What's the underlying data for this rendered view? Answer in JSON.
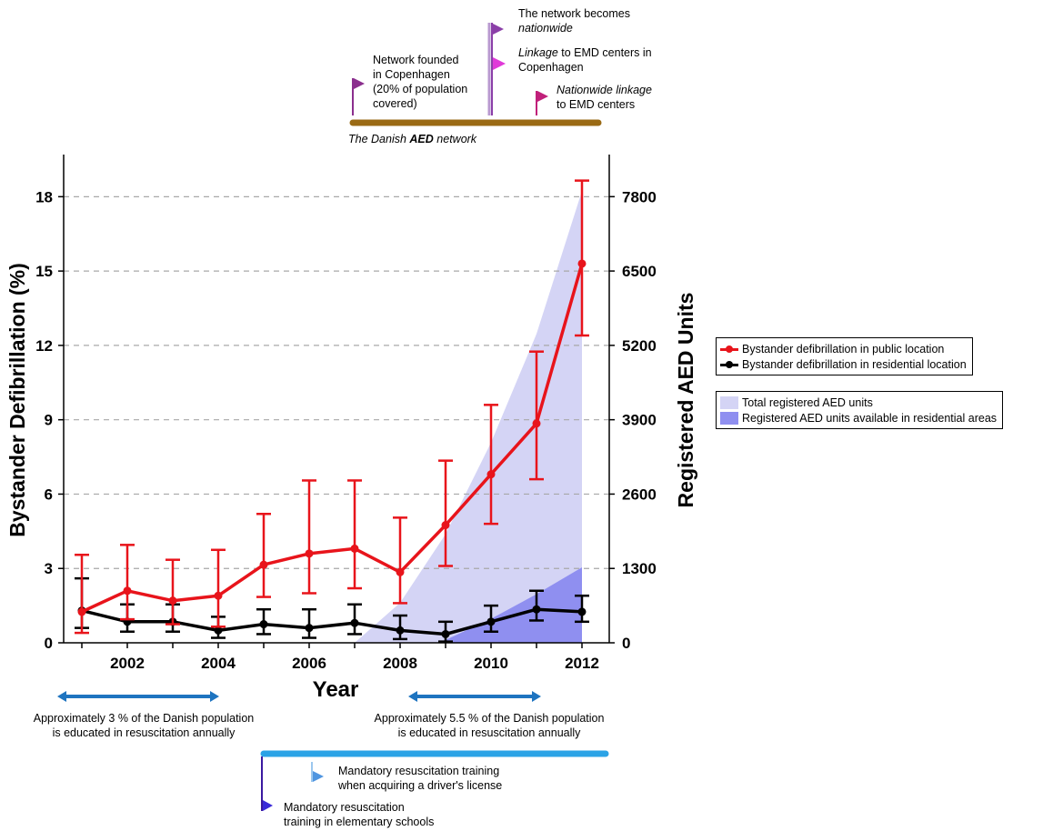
{
  "timeline": {
    "label_prefix": "The Danish ",
    "label_em": "AED",
    "label_suffix": " network",
    "events": [
      {
        "lines": [
          "Network founded",
          "in Copenhagen",
          "(20% of population",
          "covered)"
        ],
        "color": "#8b2f8e"
      },
      {
        "line1_em": "The network becomes",
        "line2_em": "nationwide",
        "color": "#8b3fa8"
      },
      {
        "line1_em": "Linkage",
        "line1_rest": " to EMD centers in",
        "line2": "Copenhagen",
        "color": "#e03ad8"
      },
      {
        "line1_em": "Nationwide linkage",
        "line2": "to EMD centers",
        "color": "#c0207a"
      }
    ]
  },
  "education": {
    "note_left": {
      "line1": "Approximately 3 % of the Danish population",
      "line2": "is educated in resuscitation annually"
    },
    "note_right": {
      "line1": "Approximately 5.5 % of the Danish population",
      "line2": "is educated in resuscitation annually"
    },
    "mandatory_driver": {
      "line1": "Mandatory resuscitation training",
      "line2": "when acquiring a driver's license"
    },
    "mandatory_school": {
      "line1": "Mandatory resuscitation",
      "line2": "training in elementary schools"
    }
  },
  "legend": {
    "lines": [
      {
        "label": "Bystander defibrillation in public location",
        "color": "#e8141b"
      },
      {
        "label": "Bystander defibrillation in residential location",
        "color": "#000000"
      }
    ],
    "areas": [
      {
        "label": "Total registered AED units",
        "color": "#d4d4f5"
      },
      {
        "label": "Registered AED units available in residential areas",
        "color": "#8f8ff0"
      }
    ]
  },
  "chart_data": {
    "type": "line",
    "xlabel": "Year",
    "ylabel": "Bystander Defibrillation (%)",
    "y2label": "Registered AED Units",
    "xlim": [
      2000.6,
      2012.6
    ],
    "ylim": [
      0,
      19.7
    ],
    "y2lim": [
      0,
      8536
    ],
    "xticks": [
      2002,
      2004,
      2006,
      2008,
      2010,
      2012
    ],
    "yticks": [
      0,
      3,
      6,
      9,
      12,
      15,
      18
    ],
    "y2ticks": [
      0,
      1300,
      2600,
      3900,
      5200,
      6500,
      7800
    ],
    "grid": "horizontal dashed",
    "x": [
      2001,
      2002,
      2003,
      2004,
      2005,
      2006,
      2007,
      2008,
      2009,
      2010,
      2011,
      2012
    ],
    "series": [
      {
        "name": "Bystander defibrillation in public location",
        "color": "#e8141b",
        "values": [
          1.25,
          2.1,
          1.7,
          1.9,
          3.15,
          3.6,
          3.8,
          2.85,
          4.75,
          6.8,
          8.85,
          15.3
        ],
        "err_low": [
          0.4,
          0.95,
          0.75,
          0.65,
          1.85,
          2.0,
          2.2,
          1.6,
          3.1,
          4.8,
          6.6,
          12.4
        ],
        "err_high": [
          3.55,
          3.95,
          3.35,
          3.75,
          5.2,
          6.55,
          6.55,
          5.05,
          7.35,
          9.6,
          11.75,
          18.65
        ]
      },
      {
        "name": "Bystander defibrillation in residential location",
        "color": "#000000",
        "values": [
          1.3,
          0.85,
          0.85,
          0.5,
          0.75,
          0.6,
          0.8,
          0.5,
          0.35,
          0.85,
          1.35,
          1.25
        ],
        "err_low": [
          0.6,
          0.45,
          0.45,
          0.2,
          0.35,
          0.2,
          0.35,
          0.15,
          0.05,
          0.45,
          0.9,
          0.85
        ],
        "err_high": [
          2.6,
          1.55,
          1.55,
          1.05,
          1.35,
          1.35,
          1.55,
          1.1,
          0.85,
          1.5,
          2.1,
          1.9
        ]
      }
    ],
    "areas": [
      {
        "name": "Total registered AED units",
        "color": "#d4d4f5",
        "x": [
          2007,
          2008,
          2009,
          2010,
          2011,
          2012
        ],
        "values": [
          0,
          700,
          1900,
          3500,
          5400,
          7900
        ]
      },
      {
        "name": "Registered AED units available in residential areas",
        "color": "#8f8ff0",
        "x": [
          2008.8,
          2009,
          2010,
          2011,
          2012
        ],
        "values": [
          0,
          50,
          420,
          850,
          1320
        ]
      }
    ]
  }
}
